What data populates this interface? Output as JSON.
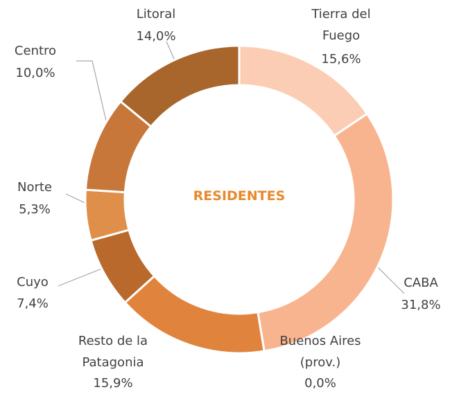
{
  "chart_data": {
    "type": "donut",
    "center_label": "RESIDENTES",
    "categories": [
      "Tierra del Fuego",
      "CABA",
      "Buenos Aires (prov.)",
      "Resto de la Patagonia",
      "Cuyo",
      "Norte",
      "Centro",
      "Litoral"
    ],
    "values": [
      15.6,
      31.8,
      0.0,
      15.9,
      7.4,
      5.3,
      10.0,
      14.0
    ],
    "value_labels": [
      "15,6%",
      "31,8%",
      "0,0%",
      "15,9%",
      "7,4%",
      "5,3%",
      "10,0%",
      "14,0%"
    ],
    "colors": [
      "#fbcdb5",
      "#f8b48e",
      "#f2a46c",
      "#e0843d",
      "#b9692b",
      "#e08f4b",
      "#c8773a",
      "#a8652c"
    ]
  }
}
